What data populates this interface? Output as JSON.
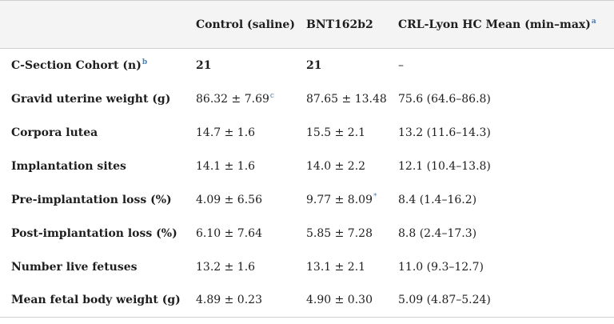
{
  "table": {
    "header": {
      "col0": "",
      "col1": "Control (saline)",
      "col2": "BNT162b2",
      "col3": "CRL-Lyon HC Mean (min–max)",
      "col3_footnote": "a"
    },
    "rows": [
      {
        "label": "C-Section Cohort (n)",
        "label_footnote": "b",
        "control": "21",
        "control_footnote": "",
        "bnt": "21",
        "bnt_footnote": "",
        "crl": "–"
      },
      {
        "label": "Gravid uterine weight (g)",
        "label_footnote": "",
        "control": "86.32 ± 7.69",
        "control_footnote": "c",
        "bnt": "87.65 ± 13.48",
        "bnt_footnote": "",
        "crl": "75.6 (64.6–86.8)"
      },
      {
        "label": "Corpora lutea",
        "label_footnote": "",
        "control": "14.7 ± 1.6",
        "control_footnote": "",
        "bnt": "15.5 ± 2.1",
        "bnt_footnote": "",
        "crl": "13.2 (11.6–14.3)"
      },
      {
        "label": "Implantation sites",
        "label_footnote": "",
        "control": "14.1 ± 1.6",
        "control_footnote": "",
        "bnt": "14.0 ± 2.2",
        "bnt_footnote": "",
        "crl": "12.1 (10.4–13.8)"
      },
      {
        "label": "Pre-implantation loss (%)",
        "label_footnote": "",
        "control": "4.09 ± 6.56",
        "control_footnote": "",
        "bnt": "9.77 ± 8.09",
        "bnt_footnote": "*",
        "crl": "8.4 (1.4–16.2)"
      },
      {
        "label": "Post-implantation loss (%)",
        "label_footnote": "",
        "control": "6.10 ± 7.64",
        "control_footnote": "",
        "bnt": "5.85 ± 7.28",
        "bnt_footnote": "",
        "crl": "8.8 (2.4–17.3)"
      },
      {
        "label": "Number live fetuses",
        "label_footnote": "",
        "control": "13.2 ± 1.6",
        "control_footnote": "",
        "bnt": "13.1 ± 2.1",
        "bnt_footnote": "",
        "crl": "11.0 (9.3–12.7)"
      },
      {
        "label": "Mean fetal body weight (g)",
        "label_footnote": "",
        "control": "4.89 ± 0.23",
        "control_footnote": "",
        "bnt": "4.90 ± 0.30",
        "bnt_footnote": "",
        "crl": "5.09 (4.87–5.24)"
      }
    ]
  },
  "colors": {
    "header_bg": "#f4f4f4",
    "rule": "#cfcfcf",
    "text": "#1e1e1e",
    "footnote_link": "#4a7fb5"
  }
}
